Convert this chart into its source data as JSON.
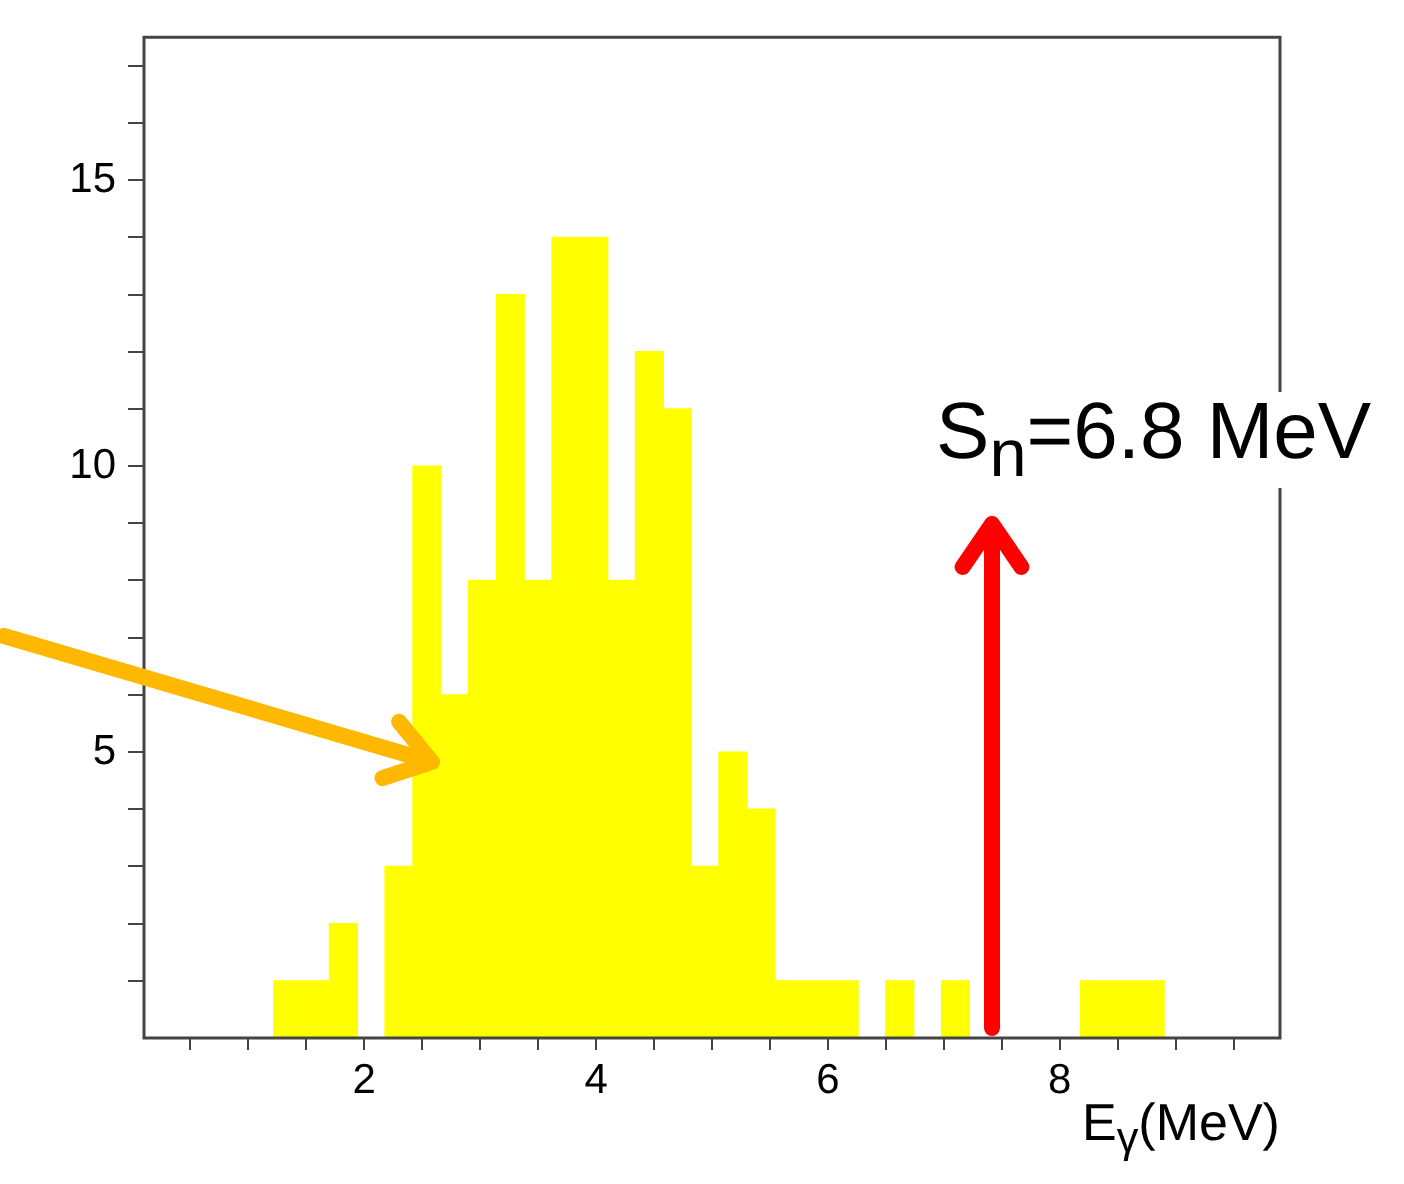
{
  "chart_data": {
    "type": "histogram",
    "bins": [
      0.5,
      0.74,
      0.98,
      1.22,
      1.46,
      1.7,
      1.94,
      2.18,
      2.42,
      2.66,
      2.9,
      3.14,
      3.38,
      3.62,
      3.86,
      4.1,
      4.34,
      4.58,
      4.82,
      5.06,
      5.3,
      5.54,
      5.78,
      6.02,
      6.26,
      6.5,
      6.74,
      6.98,
      7.22,
      7.46,
      7.7,
      7.94,
      8.18,
      8.42,
      8.66,
      8.9,
      9.14,
      9.38,
      9.62,
      9.86
    ],
    "values": [
      0,
      0,
      0,
      1,
      1,
      2,
      0,
      3,
      10,
      6,
      8,
      13,
      8,
      14,
      14,
      8,
      12,
      11,
      3,
      5,
      4,
      1,
      1,
      1,
      0,
      1,
      0,
      1,
      0,
      0,
      0,
      0,
      1,
      1,
      1,
      0,
      0,
      0,
      0
    ],
    "color": "#ffff00",
    "xlabel": "E$_{γ}$(MeV)",
    "xlim": [
      0.1,
      9.9
    ],
    "ylim": [
      0,
      17.5
    ],
    "xticks": [
      {
        "value": 0.5,
        "label": null
      },
      {
        "value": 1,
        "label": null
      },
      {
        "value": 1.5,
        "label": null
      },
      2,
      {
        "value": 2.5,
        "label": null
      },
      {
        "value": 3,
        "label": null
      },
      {
        "value": 3.5,
        "label": null
      },
      4,
      {
        "value": 4.5,
        "label": null
      },
      {
        "value": 5,
        "label": null
      },
      {
        "value": 5.5,
        "label": null
      },
      6,
      {
        "value": 6.5,
        "label": null
      },
      {
        "value": 7,
        "label": null
      },
      {
        "value": 7.5,
        "label": null
      },
      8,
      {
        "value": 8.5,
        "label": null
      },
      {
        "value": 9,
        "label": null
      },
      {
        "value": 9.5,
        "label": null
      }
    ],
    "yticks": [
      {
        "value": 1,
        "label": null
      },
      {
        "value": 2,
        "label": null
      },
      {
        "value": 3,
        "label": null
      },
      {
        "value": 4,
        "label": null
      },
      5,
      {
        "value": 6,
        "label": null
      },
      {
        "value": 7,
        "label": null
      },
      {
        "value": 8,
        "label": null
      },
      {
        "value": 9,
        "label": null
      },
      10,
      {
        "value": 11,
        "label": null
      },
      {
        "value": 12,
        "label": null
      },
      {
        "value": 13,
        "label": null
      },
      {
        "value": 14,
        "label": null
      },
      15,
      {
        "value": 16,
        "label": null
      },
      {
        "value": 17,
        "label": null
      }
    ],
    "grid": false,
    "legend": false,
    "annotations": [
      "S$_{n}$=6.8 MeV"
    ]
  }
}
